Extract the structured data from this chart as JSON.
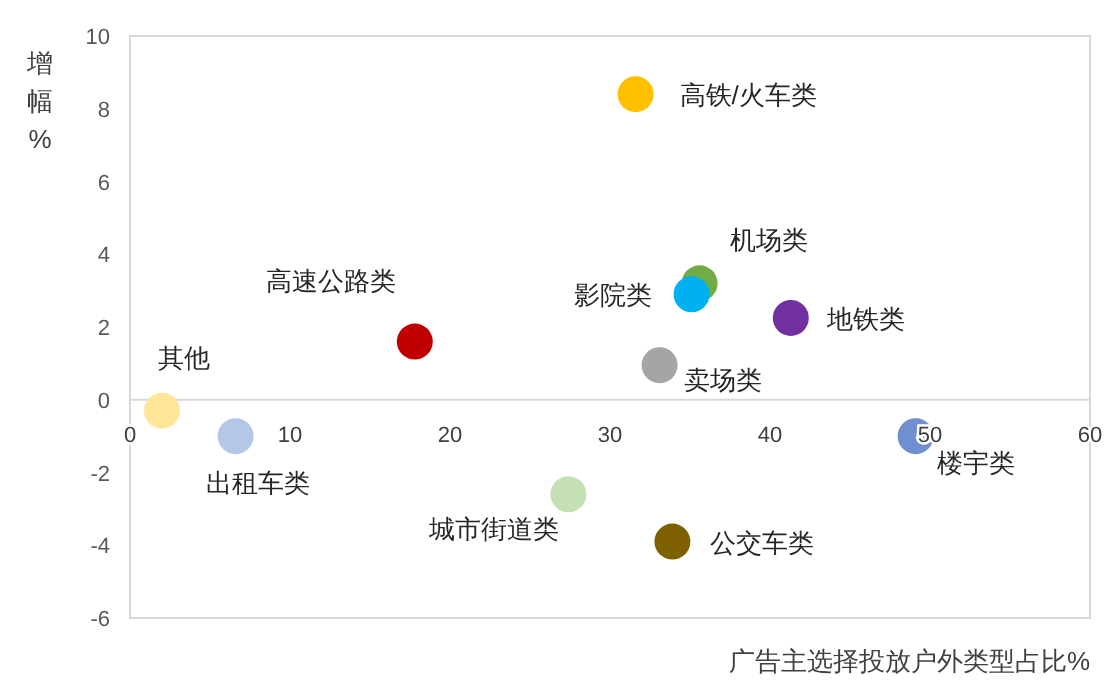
{
  "chart_data": {
    "type": "scatter",
    "xlabel": "广告主选择投放户外类型占比%",
    "ylabel": "增幅%",
    "xlim": [
      0,
      60
    ],
    "ylim": [
      -6,
      10
    ],
    "xticks": [
      0,
      10,
      20,
      30,
      40,
      50,
      60
    ],
    "yticks": [
      -6,
      -4,
      -2,
      0,
      2,
      4,
      6,
      8,
      10
    ],
    "marker": "circle",
    "series": [
      {
        "name": "高铁/火车类",
        "color": "#ffc000",
        "x": [
          31.6
        ],
        "values": [
          8.4
        ]
      },
      {
        "name": "机场类",
        "color": "#70ad47",
        "x": [
          35.6
        ],
        "values": [
          3.2
        ]
      },
      {
        "name": "影院类",
        "color": "#00b0f0",
        "x": [
          35.1
        ],
        "values": [
          2.9
        ]
      },
      {
        "name": "地铁类",
        "color": "#7030a0",
        "x": [
          41.3
        ],
        "values": [
          2.25
        ]
      },
      {
        "name": "高速公路类",
        "color": "#c00000",
        "x": [
          17.8
        ],
        "values": [
          1.6
        ]
      },
      {
        "name": "卖场类",
        "color": "#a5a5a5",
        "x": [
          33.1
        ],
        "values": [
          0.95
        ]
      },
      {
        "name": "其他",
        "color": "#ffe699",
        "x": [
          2.0
        ],
        "values": [
          -0.3
        ]
      },
      {
        "name": "出租车类",
        "color": "#b4c7e7",
        "x": [
          6.6
        ],
        "values": [
          -1.0
        ]
      },
      {
        "name": "楼宇类",
        "color": "#6f8fcf",
        "x": [
          49.1
        ],
        "values": [
          -1.0
        ]
      },
      {
        "name": "城市街道类",
        "color": "#c5e0b4",
        "x": [
          27.4
        ],
        "values": [
          -2.6
        ]
      },
      {
        "name": "公交车类",
        "color": "#7f6000",
        "x": [
          33.9
        ],
        "values": [
          -3.9
        ]
      }
    ]
  }
}
